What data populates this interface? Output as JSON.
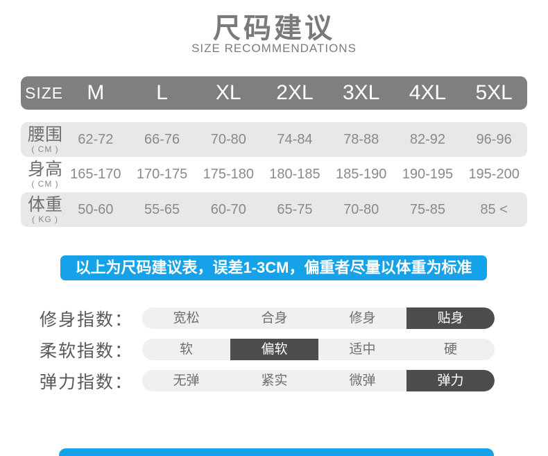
{
  "page": {
    "title": "尺码建议",
    "subtitle": "SIZE RECOMMENDATIONS"
  },
  "size_table": {
    "header": [
      "SIZE",
      "M",
      "L",
      "XL",
      "2XL",
      "3XL",
      "4XL",
      "5XL"
    ],
    "rows": [
      {
        "label": "腰围",
        "unit": "( CM )",
        "values": [
          "62-72",
          "66-76",
          "70-80",
          "74-84",
          "78-88",
          "82-92",
          "96-96"
        ]
      },
      {
        "label": "身高",
        "unit": "( CM )",
        "values": [
          "165-170",
          "170-175",
          "175-180",
          "180-185",
          "185-190",
          "190-195",
          "195-200"
        ]
      },
      {
        "label": "体重",
        "unit": "( KG )",
        "values": [
          "50-60",
          "55-65",
          "60-70",
          "65-75",
          "70-80",
          "75-85",
          "85 <"
        ]
      }
    ]
  },
  "notice": {
    "text": "以上为尺码建议表，误差1-3CM，偏重者尽量以体重为标准"
  },
  "indices": [
    {
      "label": "修身指数：",
      "options": [
        "宽松",
        "合身",
        "修身",
        "贴身"
      ],
      "selected": 3
    },
    {
      "label": "柔软指数：",
      "options": [
        "软",
        "偏软",
        "适中",
        "硬"
      ],
      "selected": 1
    },
    {
      "label": "弹力指数：",
      "options": [
        "无弹",
        "紧实",
        "微弹",
        "弹力"
      ],
      "selected": 3
    }
  ],
  "colors": {
    "accent-blue": "#15a2e8",
    "header-gray": "#7f7f7f",
    "row-stripe": "#e8e8e8",
    "selected-dark": "#4d4d4d"
  }
}
